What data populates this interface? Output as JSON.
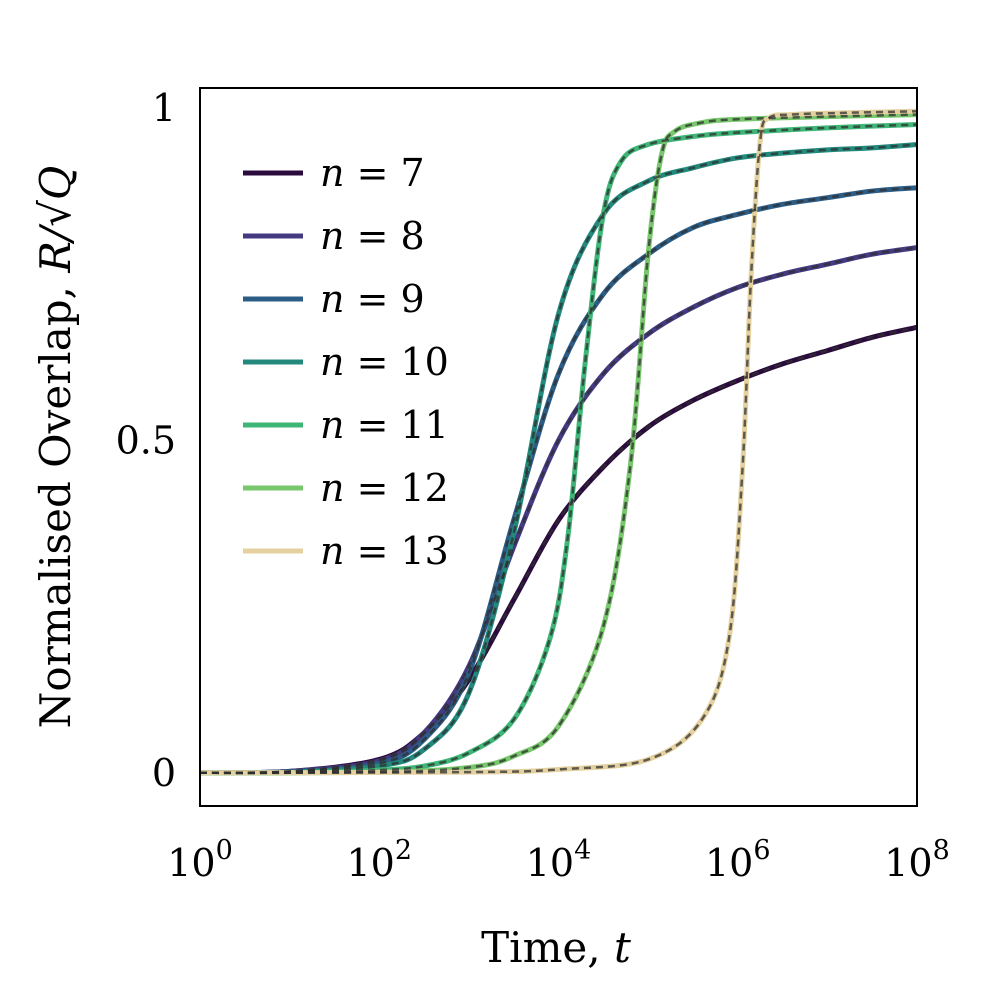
{
  "chart_data": {
    "type": "line",
    "xscale": "log",
    "xlabel": {
      "text": "Time, ",
      "var": "t"
    },
    "ylabel": {
      "text": "Normalised Overlap, ",
      "var": "R/√Q"
    },
    "xlim_exp": [
      0,
      8
    ],
    "ylim": [
      -0.05,
      1.03
    ],
    "xticks": [
      {
        "exp": 0,
        "base": "10",
        "sup": "0"
      },
      {
        "exp": 2,
        "base": "10",
        "sup": "2"
      },
      {
        "exp": 4,
        "base": "10",
        "sup": "4"
      },
      {
        "exp": 6,
        "base": "10",
        "sup": "6"
      },
      {
        "exp": 8,
        "base": "10",
        "sup": "8"
      }
    ],
    "yticks": [
      {
        "value": 0,
        "label": "0"
      },
      {
        "value": 0.5,
        "label": "0.5"
      },
      {
        "value": 1,
        "label": "1"
      }
    ],
    "legend_location": "upper-left",
    "dashed_overlay_color": "#2f2f2f",
    "series": [
      {
        "name": "n = 7",
        "label_var": "n",
        "label_eq": " = ",
        "label_num": "7",
        "color": "#2b0b3d",
        "points": [
          [
            0,
            0
          ],
          [
            1,
            0.002
          ],
          [
            2,
            0.02
          ],
          [
            2.5,
            0.06
          ],
          [
            3,
            0.14
          ],
          [
            3.5,
            0.26
          ],
          [
            4,
            0.38
          ],
          [
            4.5,
            0.46
          ],
          [
            5,
            0.52
          ],
          [
            5.5,
            0.56
          ],
          [
            6,
            0.59
          ],
          [
            6.5,
            0.615
          ],
          [
            7,
            0.635
          ],
          [
            7.5,
            0.655
          ],
          [
            8,
            0.67
          ]
        ]
      },
      {
        "name": "n = 8",
        "label_var": "n",
        "label_eq": " = ",
        "label_num": "8",
        "color": "#433a82",
        "points": [
          [
            0,
            0
          ],
          [
            1,
            0.002
          ],
          [
            2,
            0.018
          ],
          [
            2.5,
            0.06
          ],
          [
            3,
            0.16
          ],
          [
            3.5,
            0.34
          ],
          [
            4,
            0.5
          ],
          [
            4.5,
            0.6
          ],
          [
            5,
            0.66
          ],
          [
            5.5,
            0.7
          ],
          [
            6,
            0.73
          ],
          [
            6.5,
            0.75
          ],
          [
            7,
            0.765
          ],
          [
            7.5,
            0.78
          ],
          [
            8,
            0.79
          ]
        ]
      },
      {
        "name": "n = 9",
        "label_var": "n",
        "label_eq": " = ",
        "label_num": "9",
        "color": "#2c5d86",
        "points": [
          [
            0,
            0
          ],
          [
            1,
            0.001
          ],
          [
            2,
            0.014
          ],
          [
            2.5,
            0.05
          ],
          [
            3,
            0.15
          ],
          [
            3.5,
            0.38
          ],
          [
            4,
            0.6
          ],
          [
            4.5,
            0.72
          ],
          [
            5,
            0.78
          ],
          [
            5.5,
            0.82
          ],
          [
            6,
            0.84
          ],
          [
            6.5,
            0.855
          ],
          [
            7,
            0.865
          ],
          [
            7.5,
            0.875
          ],
          [
            8,
            0.88
          ]
        ]
      },
      {
        "name": "n = 10",
        "label_var": "n",
        "label_eq": " = ",
        "label_num": "10",
        "color": "#23897c",
        "points": [
          [
            0,
            0
          ],
          [
            1,
            0.001
          ],
          [
            2,
            0.01
          ],
          [
            2.5,
            0.035
          ],
          [
            3,
            0.12
          ],
          [
            3.5,
            0.36
          ],
          [
            4,
            0.69
          ],
          [
            4.5,
            0.84
          ],
          [
            5,
            0.89
          ],
          [
            5.5,
            0.91
          ],
          [
            6,
            0.925
          ],
          [
            6.5,
            0.932
          ],
          [
            7,
            0.937
          ],
          [
            7.5,
            0.94
          ],
          [
            8,
            0.945
          ]
        ]
      },
      {
        "name": "n = 11",
        "label_var": "n",
        "label_eq": " = ",
        "label_num": "11",
        "color": "#3fb677",
        "points": [
          [
            0,
            0
          ],
          [
            1,
            0
          ],
          [
            2,
            0.004
          ],
          [
            2.5,
            0.01
          ],
          [
            3,
            0.03
          ],
          [
            3.5,
            0.08
          ],
          [
            3.9,
            0.2
          ],
          [
            4.1,
            0.35
          ],
          [
            4.3,
            0.62
          ],
          [
            4.5,
            0.84
          ],
          [
            4.7,
            0.92
          ],
          [
            5,
            0.945
          ],
          [
            5.5,
            0.957
          ],
          [
            6,
            0.963
          ],
          [
            7,
            0.97
          ],
          [
            8,
            0.975
          ]
        ]
      },
      {
        "name": "n = 12",
        "label_var": "n",
        "label_eq": " = ",
        "label_num": "12",
        "color": "#78c76d",
        "points": [
          [
            0,
            0
          ],
          [
            2,
            0.001
          ],
          [
            3,
            0.008
          ],
          [
            3.5,
            0.025
          ],
          [
            4,
            0.07
          ],
          [
            4.5,
            0.22
          ],
          [
            4.8,
            0.46
          ],
          [
            5,
            0.78
          ],
          [
            5.15,
            0.93
          ],
          [
            5.3,
            0.965
          ],
          [
            5.6,
            0.978
          ],
          [
            6,
            0.983
          ],
          [
            7,
            0.987
          ],
          [
            8,
            0.99
          ]
        ]
      },
      {
        "name": "n = 13",
        "label_var": "n",
        "label_eq": " = ",
        "label_num": "13",
        "color": "#e4d19f",
        "points": [
          [
            0,
            0
          ],
          [
            3,
            0.001
          ],
          [
            4,
            0.005
          ],
          [
            5,
            0.02
          ],
          [
            5.6,
            0.08
          ],
          [
            5.9,
            0.2
          ],
          [
            6.05,
            0.45
          ],
          [
            6.15,
            0.75
          ],
          [
            6.25,
            0.95
          ],
          [
            6.35,
            0.985
          ],
          [
            6.6,
            0.99
          ],
          [
            7,
            0.992
          ],
          [
            8,
            0.995
          ]
        ]
      }
    ]
  }
}
